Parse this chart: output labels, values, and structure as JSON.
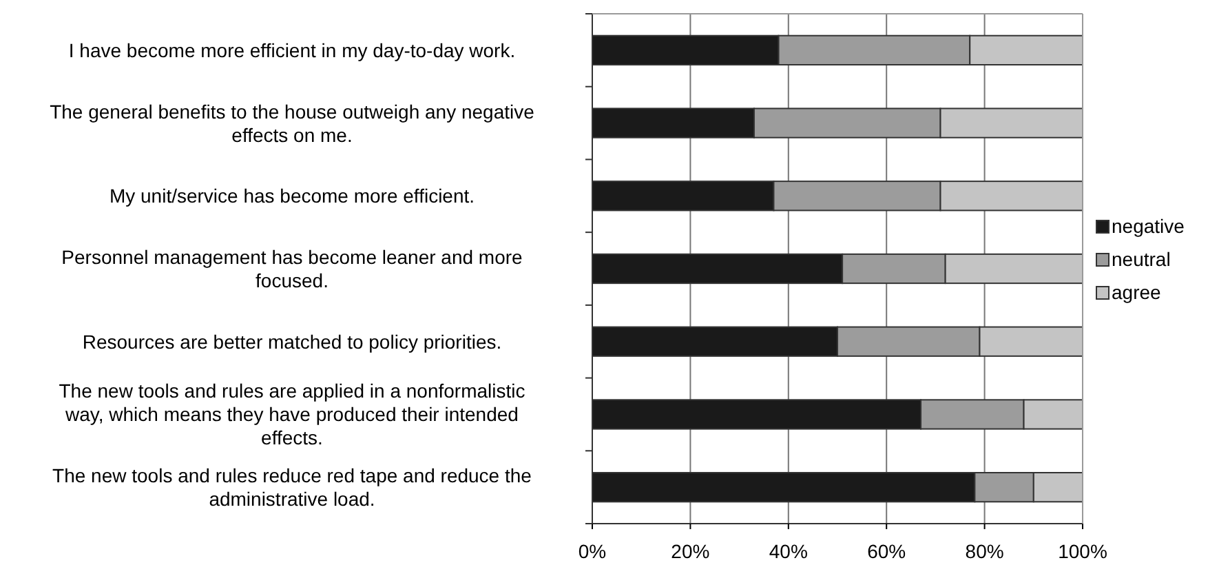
{
  "chart_data": {
    "type": "bar",
    "orientation": "horizontal",
    "stacked": true,
    "categories": [
      "I have become more efficient in my day-to-day work.",
      "The general benefits to the house outweigh any negative effects on me.",
      "My unit/service has become more efficient.",
      "Personnel management has become leaner and more focused.",
      "Resources are better matched to policy priorities.",
      "The new tools and rules are applied in a nonformalistic way, which means they have produced their intended effects.",
      "The new tools and rules reduce red tape and reduce the administrative load."
    ],
    "series": [
      {
        "name": "negative",
        "color": "#1a1a1a",
        "values": [
          38,
          33,
          37,
          51,
          50,
          67,
          78
        ]
      },
      {
        "name": "neutral",
        "color": "#9c9c9c",
        "values": [
          39,
          38,
          34,
          21,
          29,
          21,
          12
        ]
      },
      {
        "name": "agree",
        "color": "#c4c4c4",
        "values": [
          23,
          29,
          29,
          28,
          21,
          12,
          10
        ]
      }
    ],
    "xlim": [
      0,
      100
    ],
    "xticks": [
      {
        "value": 0,
        "label": "0%"
      },
      {
        "value": 20,
        "label": "20%"
      },
      {
        "value": 40,
        "label": "40%"
      },
      {
        "value": 60,
        "label": "60%"
      },
      {
        "value": 80,
        "label": "80%"
      },
      {
        "value": 100,
        "label": "100%"
      }
    ],
    "grid": "x",
    "legend": "right"
  }
}
